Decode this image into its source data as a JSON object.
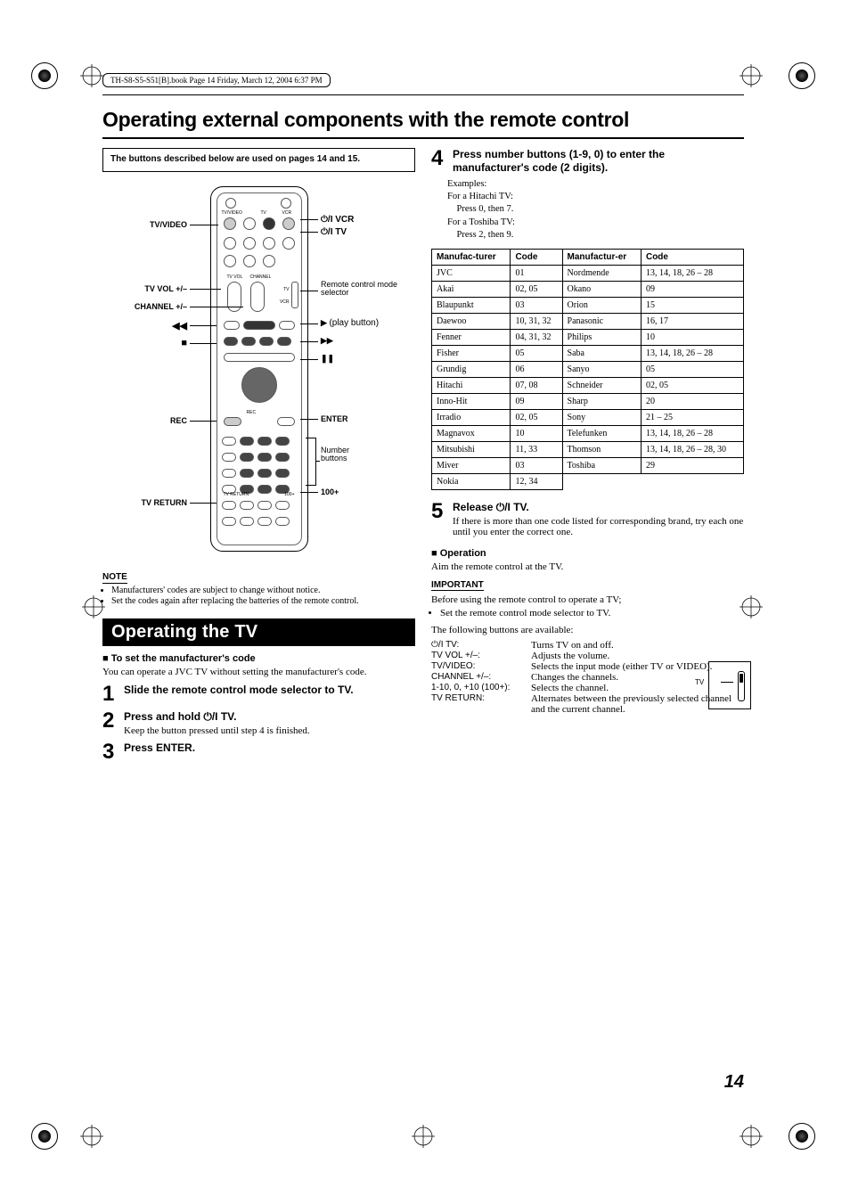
{
  "book_header": "TH-S8-S5-S51[B].book  Page 14  Friday, March 12, 2004  6:37 PM",
  "main_title": "Operating external components with the remote control",
  "buttons_note": "The buttons described below are used on pages 14 and 15.",
  "remote_labels": {
    "left": {
      "tv_video": "TV/VIDEO",
      "tv_vol": "TV VOL +/–",
      "channel": "CHANNEL +/–",
      "rew": "◀◀",
      "stop": "■",
      "rec": "REC",
      "tv_return": "TV RETURN"
    },
    "right": {
      "vcr": "⏻/I VCR",
      "tv": "⏻/I TV",
      "mode_sel": "Remote control mode selector",
      "play": "▶ (play button)",
      "ff": "▶▶",
      "pause": "❚❚",
      "enter": "ENTER",
      "numbers": "Number buttons",
      "hundred": "100+"
    },
    "internal": {
      "tv_video_small": "TV/VIDEO",
      "tv_small": "TV",
      "vcr_small": "VCR",
      "tv_vol_small": "TV VOL",
      "channel_small": "CHANNEL",
      "rec_small": "REC",
      "tv_return_small": "TV RETURN",
      "hundred_small": "100+",
      "selector_tv": "TV",
      "selector_vcr": "VCR"
    }
  },
  "note": {
    "header": "NOTE",
    "items": [
      "Manufacturers' codes are subject to change without notice.",
      "Set the codes again after replacing the batteries of the remote control."
    ]
  },
  "section_title": "Operating the TV",
  "set_code_header": "To set the manufacturer's code",
  "set_code_intro": "You can operate a JVC TV without setting the manufacturer's code.",
  "steps_left": [
    {
      "n": "1",
      "title": "Slide the remote control mode selector to TV."
    },
    {
      "n": "2",
      "title": "Press and hold ⏻/I TV.",
      "detail": "Keep the button pressed until step 4 is finished."
    },
    {
      "n": "3",
      "title": "Press ENTER."
    }
  ],
  "step4": {
    "n": "4",
    "title": "Press number buttons (1-9, 0) to enter the manufacturer's code (2 digits)."
  },
  "examples": {
    "head": "Examples:",
    "lines": [
      "For a Hitachi TV:",
      "    Press 0, then 7.",
      "For a Toshiba TV:",
      "    Press 2, then 9."
    ]
  },
  "code_table": {
    "headers": [
      "Manufac-turer",
      "Code",
      "Manufactur-er",
      "Code"
    ],
    "rows": [
      [
        "JVC",
        "01",
        "Nordmende",
        "13, 14, 18, 26 – 28"
      ],
      [
        "Akai",
        "02, 05",
        "Okano",
        "09"
      ],
      [
        "Blaupunkt",
        "03",
        "Orion",
        "15"
      ],
      [
        "Daewoo",
        "10, 31, 32",
        "Panasonic",
        "16, 17"
      ],
      [
        "Fenner",
        "04, 31, 32",
        "Philips",
        "10"
      ],
      [
        "Fisher",
        "05",
        "Saba",
        "13, 14, 18, 26 – 28"
      ],
      [
        "Grundig",
        "06",
        "Sanyo",
        "05"
      ],
      [
        "Hitachi",
        "07, 08",
        "Schneider",
        "02, 05"
      ],
      [
        "Inno-Hit",
        "09",
        "Sharp",
        "20"
      ],
      [
        "Irradio",
        "02, 05",
        "Sony",
        "21 – 25"
      ],
      [
        "Magnavox",
        "10",
        "Telefunken",
        "13, 14, 18, 26 – 28"
      ],
      [
        "Mitsubishi",
        "11, 33",
        "Thomson",
        "13, 14, 18, 26 – 28, 30"
      ],
      [
        "Miver",
        "03",
        "Toshiba",
        "29"
      ],
      [
        "Nokia",
        "12, 34",
        "",
        ""
      ]
    ]
  },
  "step5": {
    "n": "5",
    "title": "Release ⏻/I TV.",
    "detail": "If there is more than one code listed for corresponding brand, try each one until you enter the correct one."
  },
  "operation": {
    "header": "Operation",
    "intro": "Aim the remote control at the TV."
  },
  "important": {
    "header": "IMPORTANT",
    "intro": "Before using the remote control to operate a TV;",
    "bullet": "Set the remote control mode selector to TV."
  },
  "available_intro": "The following buttons are available:",
  "btn_rows": [
    {
      "k": "⏻/I TV:",
      "v": "Turns TV on and off."
    },
    {
      "k": "TV VOL +/–:",
      "v": "Adjusts the volume."
    },
    {
      "k": "TV/VIDEO:",
      "v": "Selects the input mode (either TV or VIDEO)."
    },
    {
      "k": "CHANNEL +/–:",
      "v": "Changes the channels."
    },
    {
      "k": "1-10, 0, +10 (100+):",
      "v": "Selects the channel."
    },
    {
      "k": "TV RETURN:",
      "v": "Alternates between the previously selected channel and the current channel."
    }
  ],
  "selector_label": "TV",
  "page_number": "14",
  "colors": {
    "black": "#000000",
    "white": "#ffffff",
    "grey": "#555555"
  },
  "typography": {
    "body_pt": 11,
    "title_pt": 23,
    "step_num_pt": 24,
    "table_pt": 10,
    "note_pt": 10
  }
}
